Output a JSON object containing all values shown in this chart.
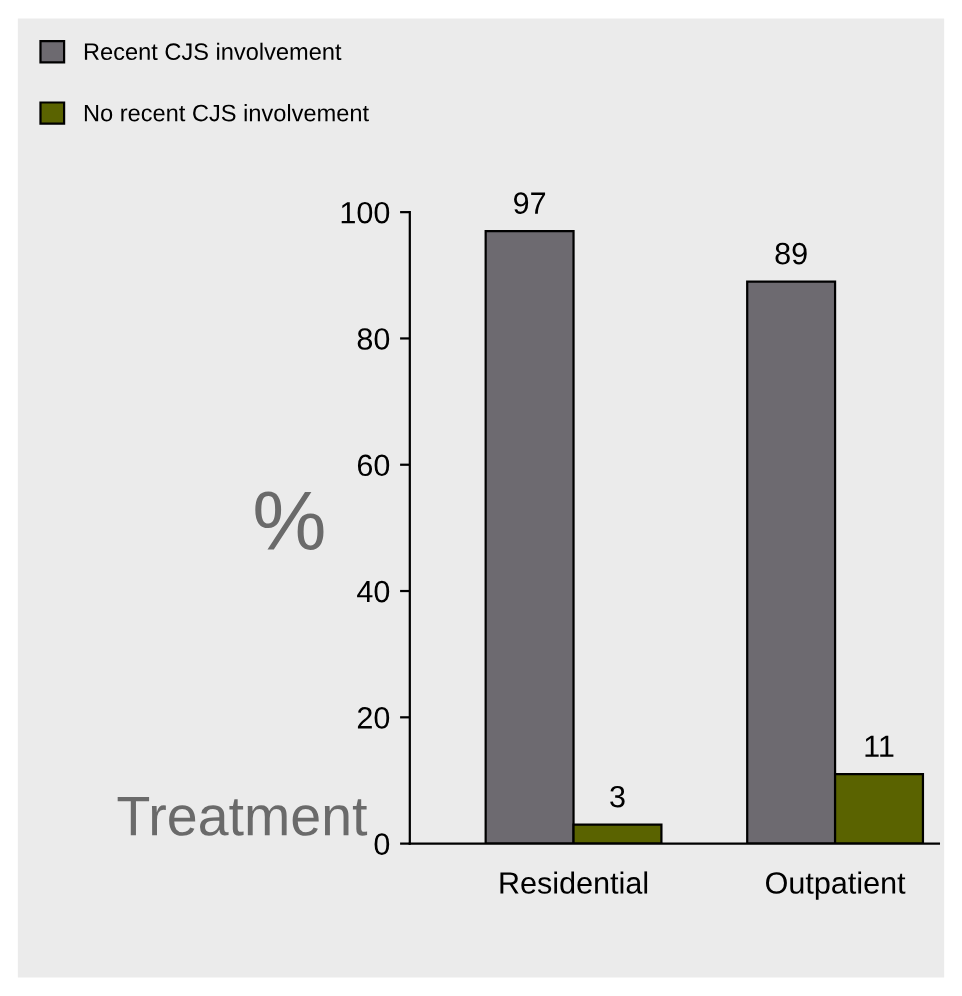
{
  "chart_data": {
    "type": "bar",
    "ylabel": "%",
    "xlabel": "Treatment",
    "categories": [
      "Residential",
      "Outpatient"
    ],
    "series": [
      {
        "name": "Recent CJS involvement",
        "color": "#6d6a70",
        "values": [
          97,
          89
        ]
      },
      {
        "name": "No recent CJS involvement",
        "color": "#5a6300",
        "values": [
          3,
          11
        ]
      }
    ],
    "ylim": [
      0,
      100
    ],
    "yticks": [
      0,
      20,
      40,
      60,
      80,
      100
    ],
    "data_labels": true,
    "legend": "top left",
    "grid": false
  }
}
